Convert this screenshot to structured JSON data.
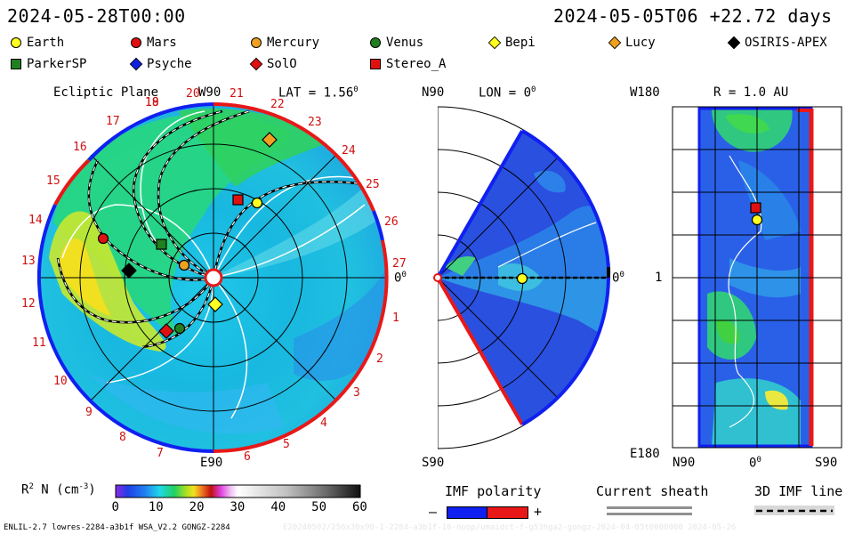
{
  "header": {
    "date_left": "2024-05-28T00:00",
    "date_right": "2024-05-05T06 +22.72 days"
  },
  "legend": [
    {
      "label": "Earth",
      "shape": "circle",
      "color": "#ffff20"
    },
    {
      "label": "Mars",
      "shape": "circle",
      "color": "#e01010"
    },
    {
      "label": "Mercury",
      "shape": "circle",
      "color": "#f0a020"
    },
    {
      "label": "Venus",
      "shape": "circle",
      "color": "#208020"
    },
    {
      "label": "Bepi",
      "shape": "diamond",
      "color": "#ffff20"
    },
    {
      "label": "Lucy",
      "shape": "diamond",
      "color": "#f0a020"
    },
    {
      "label": "OSIRIS-APEX",
      "shape": "diamond",
      "color": "#000000"
    },
    {
      "label": "ParkerSP",
      "shape": "square",
      "color": "#208020"
    },
    {
      "label": "Psyche",
      "shape": "diamond",
      "color": "#1020e0"
    },
    {
      "label": "SolO",
      "shape": "diamond",
      "color": "#e01010"
    },
    {
      "label": "Stereo_A",
      "shape": "square",
      "color": "#e01010"
    }
  ],
  "ecliptic": {
    "title": "Ecliptic Plane",
    "top_label": "W90",
    "lat_label": "LAT = 1.56",
    "lat_sup": "0",
    "right_label": "0",
    "right_sup": "0",
    "bottom_label": "E90",
    "rotation_numbers": [
      "20",
      "21",
      "22",
      "23",
      "24",
      "25",
      "26",
      "27",
      "1",
      "2",
      "3",
      "4",
      "5",
      "6",
      "7",
      "8",
      "9",
      "10",
      "11",
      "12",
      "13",
      "14",
      "15",
      "16",
      "17",
      "18",
      "19"
    ]
  },
  "meridional": {
    "top_label": "N90",
    "lon_label": "LON = 0",
    "lon_sup": "0",
    "right_label": "0",
    "right_sup": "0",
    "bottom_label": "S90"
  },
  "radial": {
    "top_left": "W180",
    "r_label": "R = 1.0 AU",
    "mid_left": "1",
    "bottom_left": "E180",
    "x_labels": [
      "N90",
      "0",
      "S90"
    ],
    "x_sup": "0"
  },
  "colorbar": {
    "label": "R",
    "label_sup": "2",
    "label_rest": " N (cm",
    "label_sup2": "-3",
    "label_end": ")",
    "ticks": [
      "0",
      "10",
      "20",
      "30",
      "40",
      "50",
      "60"
    ],
    "min": 0,
    "max": 60
  },
  "imf": {
    "title": "IMF polarity",
    "minus": "–",
    "plus": "+"
  },
  "sheath": {
    "title": "Current sheath"
  },
  "imf3d": {
    "title": "3D IMF line"
  },
  "footer": {
    "left": "ENLIL-2.7 lowres-2284-a3b1f WSA_V2.2 GONGZ-2284",
    "right": "E20240502/256x30x90-1-2284-a3b1f-16-noop/umaidct-f-g53hga2-gongz-2024-04-05t0000000 2024-05-26"
  },
  "colors": {
    "red": "#e81818",
    "blue": "#1020f0",
    "label_red": "#d01010"
  }
}
